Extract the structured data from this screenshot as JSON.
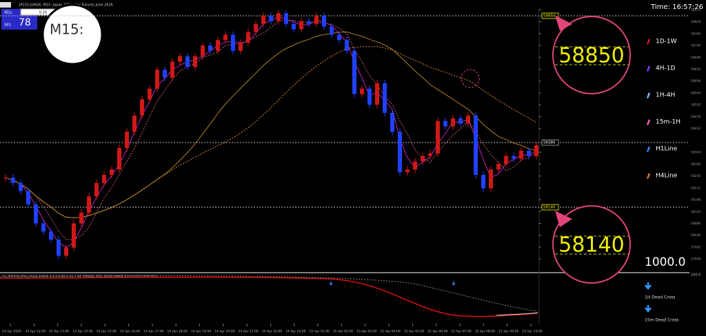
{
  "header": {
    "symbol_title": "JP225-JUN26, M15: Japan 225 Index Futures June 2026",
    "time": "Time: 16:57:26"
  },
  "trade_panel": {
    "side": "SELL",
    "lot": "0.10",
    "price_small": "583",
    "price_big": "78"
  },
  "magnifier": {
    "label": "M15:"
  },
  "chart": {
    "closes": [
      58250,
      58230,
      58200,
      58150,
      58080,
      58050,
      58020,
      57960,
      57990,
      58080,
      58120,
      58180,
      58230,
      58260,
      58280,
      58360,
      58420,
      58480,
      58540,
      58580,
      58650,
      58620,
      58680,
      58700,
      58660,
      58700,
      58740,
      58720,
      58760,
      58780,
      58720,
      58750,
      58790,
      58820,
      58850,
      58830,
      58860,
      58820,
      58800,
      58830,
      58820,
      58850,
      58810,
      58780,
      58760,
      58720,
      58560,
      58580,
      58520,
      58600,
      58490,
      58420,
      58270,
      58280,
      58310,
      58330,
      58340,
      58460,
      58440,
      58470,
      58450,
      58480,
      58260,
      58210,
      58280,
      58300,
      58330,
      58320,
      58350,
      58330,
      58370
    ],
    "ylim": [
      57900,
      58878
    ],
    "yticks": [
      58872,
      58828,
      58784,
      58740,
      58696,
      58652,
      58608,
      58564,
      58520,
      58476,
      58432,
      58344,
      58300,
      58256,
      58212,
      58168,
      58124,
      58080,
      58036,
      57992,
      57948
    ],
    "levels": [
      58850,
      58380,
      58140
    ],
    "xticks": [
      "14 Apr 2026",
      "14 Apr 12:00",
      "14 Apr 13:00",
      "14 Apr 14:00",
      "14 Apr 15:00",
      "14 Apr 16:00",
      "14 Apr 17:00",
      "14 Apr 18:00",
      "14 Apr 19:00",
      "14 Apr 20:00",
      "14 Apr 21:00",
      "14 Apr 22:00",
      "14 Apr 23:00",
      "15 Apr 01:00",
      "15 Apr 02:00",
      "15 Apr 03:00",
      "15 Apr 04:00",
      "15 Apr 05:00",
      "15 Apr 06:00",
      "15 Apr 07:00",
      "15 Apr 08:00",
      "15 Apr 09:00",
      "15 Apr 10:00"
    ]
  },
  "readout": "1000.0",
  "legend": [
    "1D-1W",
    "4H-1D",
    "1H-4H",
    "15m-1H",
    "H1Line",
    "H4Line"
  ],
  "indicator": {
    "title": "03_PERIOD_M15_JP225-JUN26 0.0 0.0 89.1 93.7 84_PERIOD_M15_JP225-JUN26 0.0 0.0 0.0 26.4 28.2",
    "axis_max": "100.0",
    "signals": [
      "1H Dead Cross",
      "15m Dead Cross"
    ]
  }
}
